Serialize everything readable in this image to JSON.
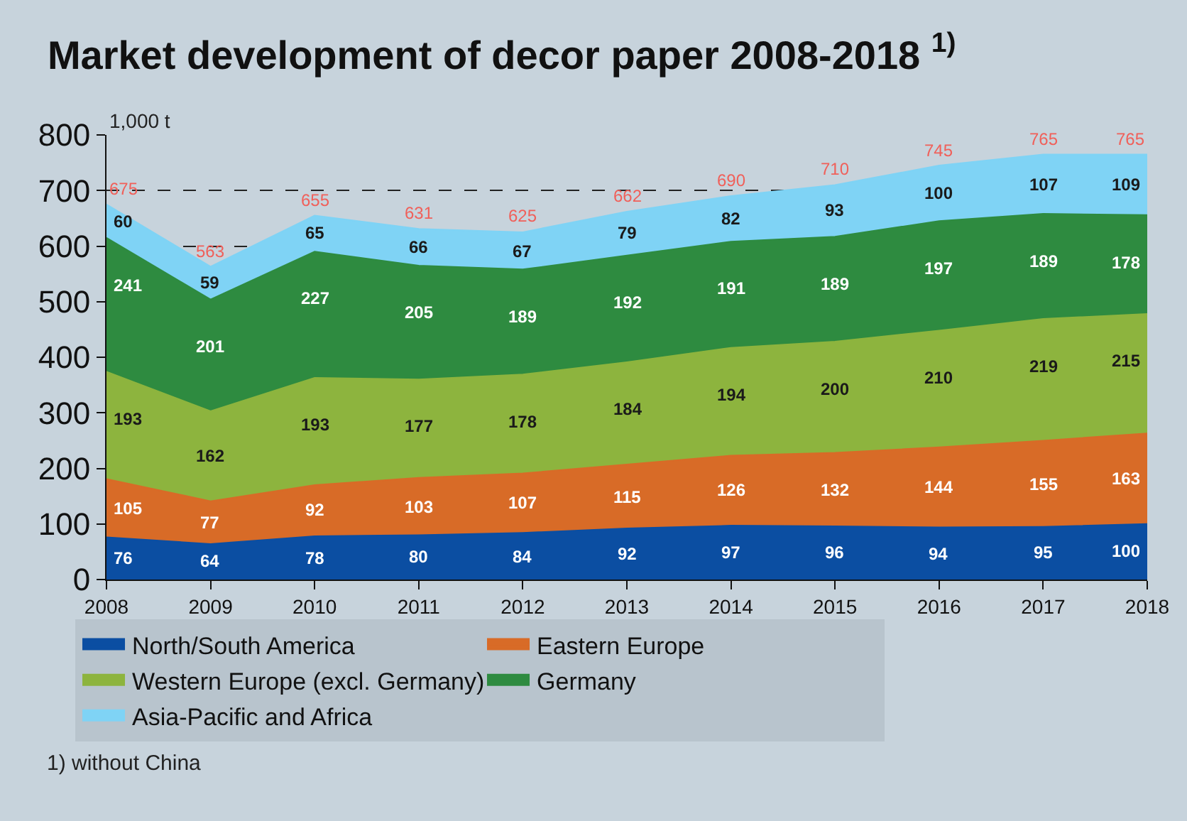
{
  "chart_data": {
    "type": "area",
    "stacked": true,
    "title": "Market development of decor paper 2008-2018 $^{1)}$",
    "ylabel": "1,000 t",
    "x": [
      2008,
      2009,
      2010,
      2011,
      2012,
      2013,
      2014,
      2015,
      2016,
      2017,
      2018
    ],
    "series": [
      {
        "name": "North/South America",
        "color": "#0b4ea2",
        "values": [
          76,
          64,
          78,
          80,
          84,
          92,
          97,
          96,
          94,
          95,
          100
        ]
      },
      {
        "name": "Eastern Europe",
        "color": "#d86b27",
        "values": [
          105,
          77,
          92,
          103,
          107,
          115,
          126,
          132,
          144,
          155,
          163
        ]
      },
      {
        "name": "Western Europe (excl. Germany)",
        "color": "#8db43e",
        "values": [
          193,
          162,
          193,
          177,
          178,
          184,
          194,
          200,
          210,
          219,
          215
        ]
      },
      {
        "name": "Germany",
        "color": "#2e8b40",
        "values": [
          241,
          201,
          227,
          205,
          189,
          192,
          191,
          189,
          197,
          189,
          178
        ]
      },
      {
        "name": "Asia-Pacific and Africa",
        "color": "#7fd3f5",
        "values": [
          60,
          59,
          65,
          66,
          67,
          79,
          82,
          93,
          100,
          107,
          109
        ]
      }
    ],
    "totals": [
      "675",
      "563",
      "655",
      "631",
      "625",
      "662",
      "690",
      "710",
      "745",
      "765",
      "765"
    ],
    "data_labels": true,
    "xlim": [
      2008,
      2018
    ],
    "xticks": [
      2008,
      2009,
      2010,
      2011,
      2012,
      2013,
      2014,
      2015,
      2016,
      2017,
      2018
    ],
    "ylim": [
      0,
      800
    ],
    "yticks": [
      0,
      100,
      200,
      300,
      400,
      500,
      600,
      700,
      800
    ],
    "grid": "y",
    "legend": "bottom",
    "marker": "none",
    "annotations": [
      "1) without China"
    ]
  }
}
